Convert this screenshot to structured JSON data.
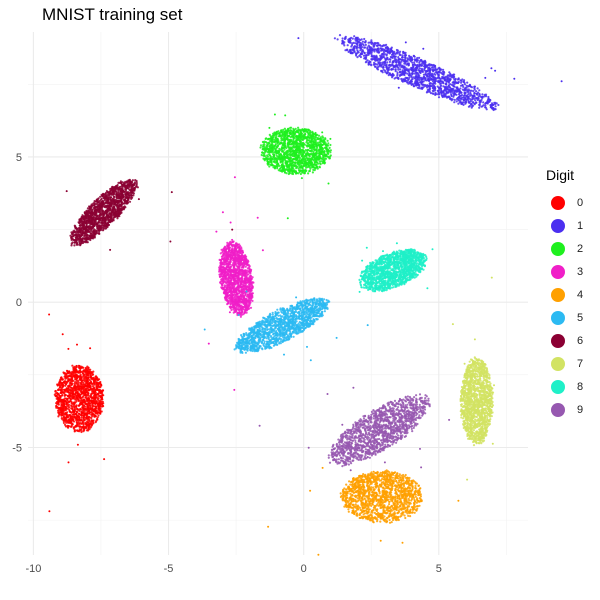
{
  "chart_data": {
    "type": "scatter",
    "title": "MNIST training set",
    "xlabel": "",
    "ylabel": "",
    "xlim": [
      -10.2,
      8.3
    ],
    "ylim": [
      -8.7,
      9.3
    ],
    "x_ticks": [
      -10,
      -5,
      0,
      5
    ],
    "y_ticks": [
      -5,
      0,
      5
    ],
    "grid": true,
    "legend": {
      "title": "Digit",
      "position": "right",
      "entries": [
        "0",
        "1",
        "2",
        "3",
        "4",
        "5",
        "6",
        "7",
        "8",
        "9"
      ]
    },
    "series": [
      {
        "name": "0",
        "color": "#FF0000",
        "centroid": [
          -8.3,
          -3.3
        ],
        "spread": [
          0.9,
          1.15
        ],
        "angle": 0
      },
      {
        "name": "1",
        "color": "#4B2FF0",
        "centroid": [
          4.2,
          7.9
        ],
        "spread": [
          3.2,
          0.5
        ],
        "angle": -22
      },
      {
        "name": "2",
        "color": "#1FF01F",
        "centroid": [
          -0.3,
          5.2
        ],
        "spread": [
          1.3,
          0.8
        ],
        "angle": 0
      },
      {
        "name": "3",
        "color": "#F01FC8",
        "centroid": [
          -2.5,
          0.8
        ],
        "spread": [
          0.6,
          1.3
        ],
        "angle": 10
      },
      {
        "name": "4",
        "color": "#FFA000",
        "centroid": [
          2.9,
          -6.7
        ],
        "spread": [
          1.5,
          0.9
        ],
        "angle": 0
      },
      {
        "name": "5",
        "color": "#2CBAF2",
        "centroid": [
          -0.8,
          -0.8
        ],
        "spread": [
          1.9,
          0.55
        ],
        "angle": 25
      },
      {
        "name": "6",
        "color": "#8B0033",
        "centroid": [
          -7.4,
          3.1
        ],
        "spread": [
          1.6,
          0.5
        ],
        "angle": 42
      },
      {
        "name": "7",
        "color": "#D2E363",
        "centroid": [
          6.4,
          -3.4
        ],
        "spread": [
          0.6,
          1.5
        ],
        "angle": 0
      },
      {
        "name": "8",
        "color": "#1FF0C8",
        "centroid": [
          3.3,
          1.1
        ],
        "spread": [
          1.3,
          0.6
        ],
        "angle": 20
      },
      {
        "name": "9",
        "color": "#9658B0",
        "centroid": [
          2.8,
          -4.4
        ],
        "spread": [
          2.1,
          0.7
        ],
        "angle": 30
      }
    ]
  }
}
